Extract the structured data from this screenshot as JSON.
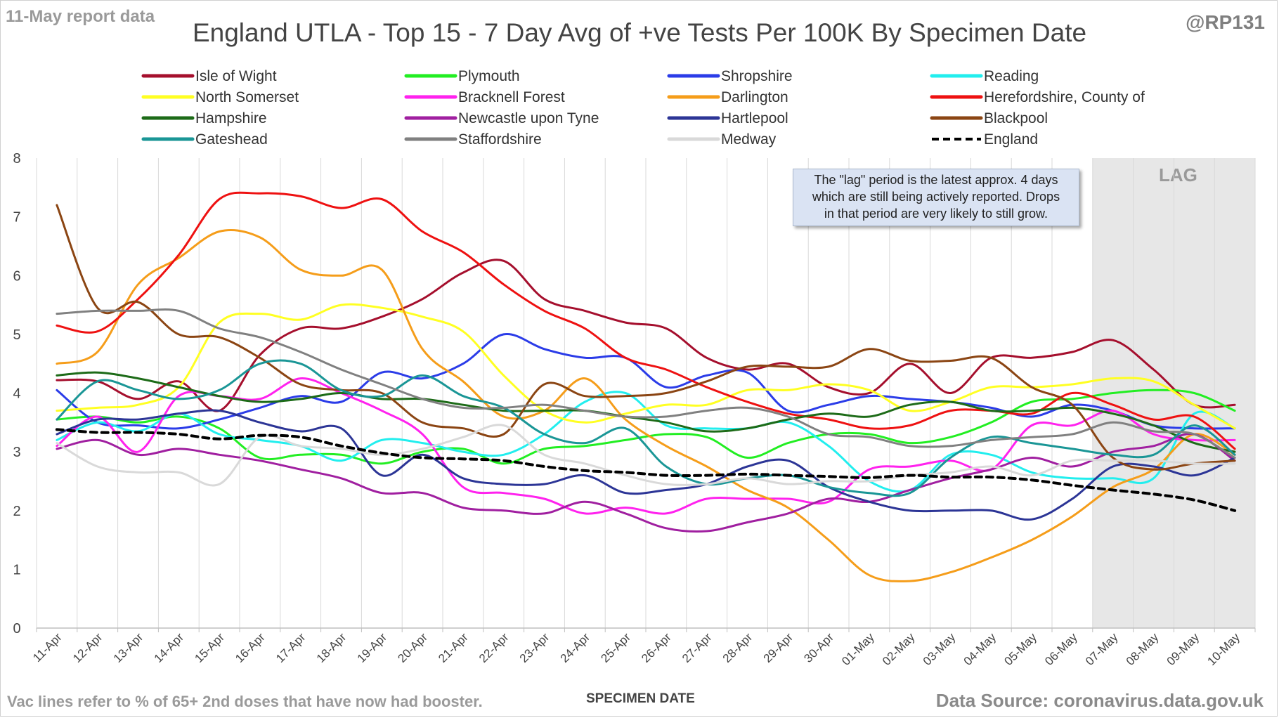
{
  "header": {
    "report_date": "11-May report data",
    "handle": "@RP131",
    "title": "England UTLA - Top 15 - 7 Day Avg of +ve Tests Per 100K By Specimen Date"
  },
  "footer": {
    "note": "Vac lines refer to % of 65+ 2nd doses that have now had booster.",
    "source": "Data Source: coronavirus.data.gov.uk"
  },
  "annotation": {
    "lines": [
      "The \"lag\" period is the latest approx. 4 days",
      "which are still being actively reported.  Drops",
      "in that period are very likely to still grow."
    ],
    "lag_label": "LAG"
  },
  "chart_data": {
    "type": "line",
    "title": "England UTLA - Top 15 - 7 Day Avg of +ve Tests Per 100K By Specimen Date",
    "xlabel": "SPECIMEN DATE",
    "ylabel": "",
    "ylim": [
      0,
      8
    ],
    "yticks": [
      "0",
      "1",
      "2",
      "3",
      "4",
      "5",
      "6",
      "7",
      "8"
    ],
    "grid": "vertical",
    "legend_position": "top",
    "lag_start": "07-May",
    "x": [
      "11-Apr",
      "12-Apr",
      "13-Apr",
      "14-Apr",
      "15-Apr",
      "16-Apr",
      "17-Apr",
      "18-Apr",
      "19-Apr",
      "20-Apr",
      "21-Apr",
      "22-Apr",
      "23-Apr",
      "24-Apr",
      "25-Apr",
      "26-Apr",
      "27-Apr",
      "28-Apr",
      "29-Apr",
      "30-Apr",
      "01-May",
      "02-May",
      "03-May",
      "04-May",
      "05-May",
      "06-May",
      "07-May",
      "08-May",
      "09-May",
      "10-May"
    ],
    "series": [
      {
        "name": "Isle of Wight",
        "color": "#a50f2d",
        "dash": false,
        "values": [
          4.22,
          4.2,
          3.9,
          4.2,
          3.7,
          4.65,
          5.1,
          5.1,
          5.3,
          5.6,
          6.05,
          6.25,
          5.6,
          5.4,
          5.2,
          5.1,
          4.6,
          4.4,
          4.5,
          4.1,
          4.0,
          4.5,
          4.0,
          4.6,
          4.6,
          4.7,
          4.9,
          4.4,
          3.8,
          3.8
        ]
      },
      {
        "name": "Plymouth",
        "color": "#22ee22",
        "dash": false,
        "values": [
          3.55,
          3.6,
          3.5,
          3.6,
          3.4,
          2.9,
          2.95,
          2.95,
          2.8,
          3.0,
          3.05,
          2.8,
          3.05,
          3.1,
          3.2,
          3.3,
          3.25,
          2.9,
          3.15,
          3.3,
          3.3,
          3.15,
          3.25,
          3.5,
          3.85,
          3.9,
          4.0,
          4.05,
          4.0,
          3.7
        ]
      },
      {
        "name": "Shropshire",
        "color": "#2b3ce8",
        "dash": false,
        "values": [
          4.05,
          3.5,
          3.45,
          3.4,
          3.55,
          3.75,
          3.95,
          3.85,
          4.35,
          4.25,
          4.5,
          5.0,
          4.75,
          4.6,
          4.6,
          4.1,
          4.3,
          4.35,
          3.7,
          3.8,
          3.95,
          3.9,
          3.85,
          3.75,
          3.6,
          3.8,
          3.7,
          3.45,
          3.4,
          3.4
        ]
      },
      {
        "name": "Reading",
        "color": "#22eeee",
        "dash": false,
        "values": [
          3.2,
          3.5,
          3.35,
          3.65,
          3.3,
          3.2,
          3.1,
          2.85,
          3.2,
          3.15,
          3.0,
          2.95,
          3.3,
          3.85,
          4.0,
          3.45,
          3.4,
          3.4,
          3.5,
          3.1,
          2.5,
          2.35,
          2.95,
          2.95,
          2.65,
          2.55,
          2.55,
          2.55,
          3.65,
          3.4
        ]
      },
      {
        "name": "North Somerset",
        "color": "#ffff22",
        "dash": false,
        "values": [
          3.7,
          3.75,
          3.8,
          4.1,
          5.2,
          5.35,
          5.25,
          5.5,
          5.45,
          5.3,
          5.05,
          4.3,
          3.7,
          3.5,
          3.65,
          3.8,
          3.8,
          4.05,
          4.05,
          4.15,
          4.05,
          3.7,
          3.85,
          4.1,
          4.1,
          4.15,
          4.25,
          4.2,
          3.8,
          3.4
        ]
      },
      {
        "name": "Bracknell Forest",
        "color": "#ff22ee",
        "dash": false,
        "values": [
          3.1,
          3.6,
          3.0,
          3.95,
          3.95,
          3.9,
          4.25,
          4.0,
          3.7,
          3.3,
          2.4,
          2.3,
          2.2,
          1.95,
          2.05,
          1.95,
          2.2,
          2.2,
          2.2,
          2.15,
          2.7,
          2.75,
          2.85,
          2.7,
          3.45,
          3.45,
          3.7,
          3.3,
          3.2,
          3.2
        ]
      },
      {
        "name": "Darlington",
        "color": "#f59d1a",
        "dash": false,
        "values": [
          4.5,
          4.7,
          5.85,
          6.3,
          6.75,
          6.65,
          6.1,
          6.0,
          6.1,
          4.75,
          4.2,
          3.6,
          3.7,
          4.25,
          3.55,
          3.1,
          2.75,
          2.35,
          2.05,
          1.5,
          0.9,
          0.8,
          0.95,
          1.2,
          1.5,
          1.9,
          2.4,
          2.7,
          3.3,
          2.95
        ]
      },
      {
        "name": "Herefordshire, County of",
        "color": "#ee1111",
        "dash": false,
        "values": [
          5.15,
          5.05,
          5.6,
          6.35,
          7.3,
          7.4,
          7.35,
          7.15,
          7.3,
          6.75,
          6.4,
          5.85,
          5.4,
          5.1,
          4.6,
          4.4,
          4.1,
          3.85,
          3.65,
          3.55,
          3.4,
          3.45,
          3.7,
          3.7,
          3.65,
          4.0,
          3.8,
          3.55,
          3.6,
          3.05
        ]
      },
      {
        "name": "Hampshire",
        "color": "#1d6b18",
        "dash": false,
        "values": [
          4.3,
          4.35,
          4.25,
          4.1,
          3.95,
          3.85,
          3.9,
          4.0,
          3.9,
          3.9,
          3.8,
          3.7,
          3.7,
          3.7,
          3.6,
          3.5,
          3.35,
          3.4,
          3.55,
          3.65,
          3.6,
          3.8,
          3.85,
          3.7,
          3.7,
          3.75,
          3.65,
          3.45,
          3.15,
          3.0
        ]
      },
      {
        "name": "Newcastle upon Tyne",
        "color": "#a01fa0",
        "dash": false,
        "values": [
          3.05,
          3.2,
          2.95,
          3.05,
          2.95,
          2.85,
          2.7,
          2.55,
          2.3,
          2.3,
          2.05,
          2.0,
          1.95,
          2.15,
          1.95,
          1.7,
          1.65,
          1.8,
          1.95,
          2.2,
          2.15,
          2.35,
          2.55,
          2.7,
          2.9,
          2.75,
          3.0,
          3.1,
          3.3,
          2.85
        ]
      },
      {
        "name": "Hartlepool",
        "color": "#2c3596",
        "dash": false,
        "values": [
          3.3,
          3.55,
          3.55,
          3.65,
          3.7,
          3.5,
          3.35,
          3.4,
          2.6,
          2.95,
          2.55,
          2.45,
          2.45,
          2.6,
          2.3,
          2.35,
          2.45,
          2.75,
          2.85,
          2.4,
          2.15,
          2.0,
          2.0,
          2.0,
          1.85,
          2.2,
          2.75,
          2.75,
          2.6,
          2.9
        ]
      },
      {
        "name": "Blackpool",
        "color": "#8b4513",
        "dash": false,
        "values": [
          7.2,
          5.45,
          5.55,
          5.0,
          4.95,
          4.6,
          4.15,
          4.05,
          4.0,
          3.5,
          3.4,
          3.3,
          4.15,
          3.95,
          3.95,
          4.0,
          4.2,
          4.45,
          4.45,
          4.45,
          4.75,
          4.55,
          4.55,
          4.6,
          4.1,
          3.8,
          2.9,
          2.7,
          2.8,
          2.85
        ]
      },
      {
        "name": "Gateshead",
        "color": "#1a9696",
        "dash": false,
        "values": [
          3.55,
          4.2,
          4.05,
          3.9,
          4.05,
          4.5,
          4.5,
          4.05,
          3.95,
          4.3,
          3.95,
          3.75,
          3.3,
          3.15,
          3.4,
          2.75,
          2.45,
          2.55,
          2.6,
          2.4,
          2.3,
          2.3,
          2.9,
          3.25,
          3.15,
          3.05,
          2.95,
          2.95,
          3.45,
          2.95
        ]
      },
      {
        "name": "Staffordshire",
        "color": "#808080",
        "dash": false,
        "values": [
          5.35,
          5.4,
          5.4,
          5.4,
          5.1,
          4.95,
          4.7,
          4.4,
          4.15,
          3.9,
          3.75,
          3.75,
          3.8,
          3.7,
          3.6,
          3.6,
          3.7,
          3.75,
          3.6,
          3.3,
          3.25,
          3.1,
          3.1,
          3.2,
          3.25,
          3.3,
          3.5,
          3.35,
          3.3,
          2.9
        ]
      },
      {
        "name": "Medway",
        "color": "#d9d9d9",
        "dash": false,
        "values": [
          3.15,
          2.75,
          2.65,
          2.65,
          2.45,
          3.25,
          3.1,
          3.05,
          2.95,
          3.05,
          3.25,
          3.45,
          2.95,
          2.8,
          2.6,
          2.45,
          2.45,
          2.55,
          2.45,
          2.5,
          2.5,
          2.6,
          2.65,
          2.75,
          2.6,
          2.85,
          2.85,
          2.85,
          2.8,
          2.8
        ]
      },
      {
        "name": "England",
        "color": "#000000",
        "dash": true,
        "values": [
          3.38,
          3.33,
          3.33,
          3.3,
          3.22,
          3.28,
          3.25,
          3.1,
          2.98,
          2.9,
          2.88,
          2.85,
          2.75,
          2.68,
          2.65,
          2.6,
          2.6,
          2.62,
          2.6,
          2.58,
          2.56,
          2.6,
          2.57,
          2.57,
          2.52,
          2.43,
          2.35,
          2.28,
          2.18,
          2.0
        ]
      }
    ]
  }
}
